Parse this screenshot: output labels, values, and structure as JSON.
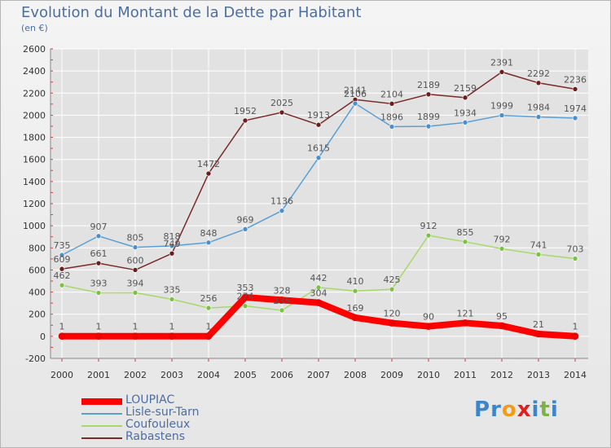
{
  "title": "Evolution du Montant de la Dette par Habitant",
  "subtitle": "(en €)",
  "logo": {
    "text": "Proxiti",
    "letters": [
      "P",
      "r",
      "o",
      "x",
      "i",
      "t",
      "i"
    ]
  },
  "colors": {
    "axis_text": "#333333",
    "label_text": "#555555",
    "title": "#4d6ea3",
    "grid": "#ffffff",
    "tick": "#e53030",
    "logo": [
      "#3b86c8",
      "#3b86c8",
      "#f39c12",
      "#e02020",
      "#3b86c8",
      "#7cb342",
      "#3b86c8"
    ]
  },
  "chart_data": {
    "type": "line",
    "x": [
      2000,
      2001,
      2002,
      2003,
      2004,
      2005,
      2006,
      2007,
      2008,
      2009,
      2010,
      2011,
      2012,
      2013,
      2014
    ],
    "x_labels": [
      "2000",
      "2001",
      "2002",
      "2003",
      "2004",
      "2005",
      "2006",
      "2007",
      "2008",
      "2009",
      "2010",
      "2011",
      "2012",
      "2013",
      "2014"
    ],
    "ylim": [
      -200,
      2600
    ],
    "y_ticks": [
      -200,
      0,
      200,
      400,
      600,
      800,
      1000,
      1200,
      1400,
      1600,
      1800,
      2000,
      2200,
      2400,
      2600
    ],
    "grid": true,
    "legend_position": "bottom-left",
    "series": [
      {
        "name": "Rabastens",
        "color": "#7b2a2a",
        "dot": "#6a1e1e",
        "thick": false,
        "values": [
          609,
          661,
          600,
          749,
          1472,
          1952,
          2025,
          1913,
          2141,
          2104,
          2189,
          2159,
          2391,
          2292,
          2236
        ],
        "labels": [
          "609",
          "661",
          "600",
          "749",
          "1472",
          "1952",
          "2025",
          "1913",
          "2141",
          "2104",
          "2189",
          "2159",
          "2391",
          "2292",
          "2236"
        ]
      },
      {
        "name": "Lisle-sur-Tarn",
        "color": "#5a9fd4",
        "dot": "#4a8fcc",
        "thick": false,
        "values": [
          735,
          907,
          805,
          818,
          848,
          969,
          1136,
          1615,
          2106,
          1896,
          1899,
          1934,
          1999,
          1984,
          1974
        ],
        "labels": [
          "735",
          "907",
          "805",
          "818",
          "848",
          "969",
          "1136",
          "1615",
          "2106",
          "1896",
          "1899",
          "1934",
          "1999",
          "1984",
          "1974"
        ]
      },
      {
        "name": "Coufouleux",
        "color": "#a6d96a",
        "dot": "#7cc242",
        "thick": false,
        "values": [
          462,
          393,
          394,
          335,
          256,
          274,
          235,
          442,
          410,
          425,
          912,
          855,
          792,
          741,
          703
        ],
        "labels": [
          "462",
          "393",
          "394",
          "335",
          "256",
          "274",
          "235",
          "442",
          "410",
          "425",
          "912",
          "855",
          "792",
          "741",
          "703"
        ]
      },
      {
        "name": "LOUPIAC",
        "color": "#ff0000",
        "dot": "#ee0000",
        "thick": true,
        "values": [
          1,
          1,
          1,
          1,
          1,
          353,
          328,
          304,
          169,
          120,
          90,
          121,
          95,
          21,
          1
        ],
        "labels": [
          "1",
          "1",
          "1",
          "1",
          "1",
          "353",
          "328",
          "304",
          "169",
          "120",
          "90",
          "121",
          "95",
          "21",
          "1"
        ]
      }
    ],
    "legend_order": [
      "LOUPIAC",
      "Lisle-sur-Tarn",
      "Coufouleux",
      "Rabastens"
    ]
  }
}
